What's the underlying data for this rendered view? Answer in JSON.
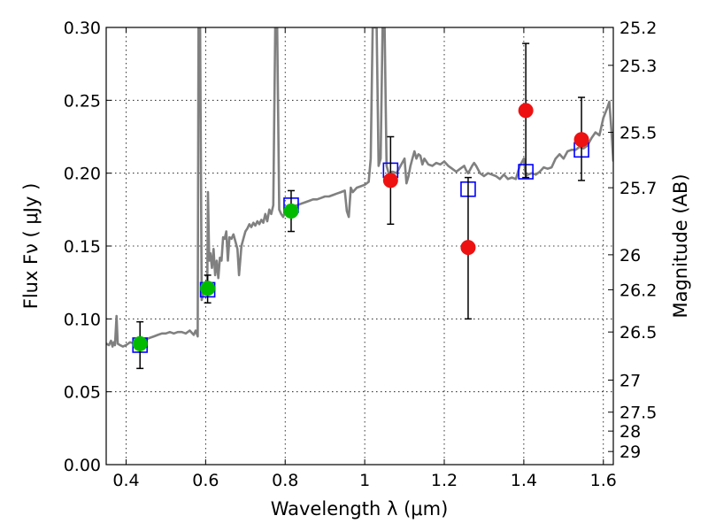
{
  "chart_data": {
    "type": "scatter",
    "xlabel": "Wavelength  λ (μm)",
    "ylabel": "Flux  Fν  ( μJy )",
    "ylabel_right": "Magnitude (AB)",
    "xlim": [
      0.35,
      1.625
    ],
    "ylim": [
      0.0,
      0.3
    ],
    "x_ticks": [
      0.4,
      0.6,
      0.8,
      1.0,
      1.2,
      1.4,
      1.6
    ],
    "x_tick_labels": [
      "0.4",
      "0.6",
      "0.8",
      "1",
      "1.2",
      "1.4",
      "1.6"
    ],
    "y_ticks": [
      0.0,
      0.05,
      0.1,
      0.15,
      0.2,
      0.25,
      0.3
    ],
    "y_tick_labels": [
      "0.00",
      "0.05",
      "0.10",
      "0.15",
      "0.20",
      "0.25",
      "0.30"
    ],
    "right_ticks": [
      {
        "label": "25.2",
        "flux": 0.3
      },
      {
        "label": "25.3",
        "flux": 0.274
      },
      {
        "label": "25.5",
        "flux": 0.228
      },
      {
        "label": "25.7",
        "flux": 0.19
      },
      {
        "label": "26",
        "flux": 0.144
      },
      {
        "label": "26.2",
        "flux": 0.12
      },
      {
        "label": "26.5",
        "flux": 0.091
      },
      {
        "label": "27",
        "flux": 0.058
      },
      {
        "label": "27.5",
        "flux": 0.036
      },
      {
        "label": "28",
        "flux": 0.023
      },
      {
        "label": "29",
        "flux": 0.009
      }
    ],
    "grid": true,
    "spectrum": {
      "color": "#808080",
      "points": [
        [
          0.35,
          0.083
        ],
        [
          0.357,
          0.082
        ],
        [
          0.362,
          0.085
        ],
        [
          0.366,
          0.081
        ],
        [
          0.369,
          0.084
        ],
        [
          0.372,
          0.082
        ],
        [
          0.376,
          0.102
        ],
        [
          0.379,
          0.083
        ],
        [
          0.385,
          0.082
        ],
        [
          0.392,
          0.081
        ],
        [
          0.4,
          0.082
        ],
        [
          0.41,
          0.084
        ],
        [
          0.42,
          0.083
        ],
        [
          0.43,
          0.084
        ],
        [
          0.44,
          0.085
        ],
        [
          0.45,
          0.086
        ],
        [
          0.46,
          0.087
        ],
        [
          0.47,
          0.088
        ],
        [
          0.48,
          0.089
        ],
        [
          0.49,
          0.09
        ],
        [
          0.5,
          0.09
        ],
        [
          0.51,
          0.091
        ],
        [
          0.52,
          0.09
        ],
        [
          0.53,
          0.091
        ],
        [
          0.54,
          0.091
        ],
        [
          0.55,
          0.09
        ],
        [
          0.56,
          0.092
        ],
        [
          0.57,
          0.089
        ],
        [
          0.575,
          0.092
        ],
        [
          0.58,
          0.088
        ],
        [
          0.582,
          0.3
        ],
        [
          0.586,
          0.3
        ],
        [
          0.59,
          0.113
        ],
        [
          0.595,
          0.118
        ],
        [
          0.6,
          0.12
        ],
        [
          0.604,
          0.121
        ],
        [
          0.606,
          0.187
        ],
        [
          0.609,
          0.14
        ],
        [
          0.612,
          0.145
        ],
        [
          0.616,
          0.135
        ],
        [
          0.62,
          0.148
        ],
        [
          0.624,
          0.13
        ],
        [
          0.628,
          0.14
        ],
        [
          0.632,
          0.128
        ],
        [
          0.636,
          0.142
        ],
        [
          0.64,
          0.14
        ],
        [
          0.644,
          0.156
        ],
        [
          0.648,
          0.155
        ],
        [
          0.652,
          0.16
        ],
        [
          0.656,
          0.14
        ],
        [
          0.66,
          0.156
        ],
        [
          0.665,
          0.155
        ],
        [
          0.67,
          0.158
        ],
        [
          0.675,
          0.153
        ],
        [
          0.68,
          0.148
        ],
        [
          0.684,
          0.13
        ],
        [
          0.69,
          0.15
        ],
        [
          0.695,
          0.155
        ],
        [
          0.7,
          0.16
        ],
        [
          0.705,
          0.162
        ],
        [
          0.71,
          0.165
        ],
        [
          0.715,
          0.163
        ],
        [
          0.72,
          0.166
        ],
        [
          0.725,
          0.164
        ],
        [
          0.73,
          0.167
        ],
        [
          0.735,
          0.165
        ],
        [
          0.74,
          0.168
        ],
        [
          0.745,
          0.166
        ],
        [
          0.75,
          0.172
        ],
        [
          0.755,
          0.167
        ],
        [
          0.76,
          0.175
        ],
        [
          0.765,
          0.172
        ],
        [
          0.77,
          0.178
        ],
        [
          0.775,
          0.3
        ],
        [
          0.78,
          0.3
        ],
        [
          0.785,
          0.175
        ],
        [
          0.79,
          0.172
        ],
        [
          0.795,
          0.17
        ],
        [
          0.8,
          0.174
        ],
        [
          0.805,
          0.175
        ],
        [
          0.81,
          0.176
        ],
        [
          0.82,
          0.177
        ],
        [
          0.83,
          0.178
        ],
        [
          0.84,
          0.179
        ],
        [
          0.85,
          0.18
        ],
        [
          0.86,
          0.181
        ],
        [
          0.87,
          0.182
        ],
        [
          0.88,
          0.182
        ],
        [
          0.89,
          0.183
        ],
        [
          0.9,
          0.184
        ],
        [
          0.91,
          0.184
        ],
        [
          0.92,
          0.185
        ],
        [
          0.93,
          0.186
        ],
        [
          0.94,
          0.187
        ],
        [
          0.95,
          0.188
        ],
        [
          0.955,
          0.174
        ],
        [
          0.96,
          0.17
        ],
        [
          0.965,
          0.19
        ],
        [
          0.97,
          0.187
        ],
        [
          0.98,
          0.19
        ],
        [
          0.99,
          0.191
        ],
        [
          1.0,
          0.192
        ],
        [
          1.01,
          0.194
        ],
        [
          1.015,
          0.21
        ],
        [
          1.02,
          0.3
        ],
        [
          1.03,
          0.3
        ],
        [
          1.035,
          0.205
        ],
        [
          1.04,
          0.21
        ],
        [
          1.045,
          0.3
        ],
        [
          1.05,
          0.3
        ],
        [
          1.055,
          0.205
        ],
        [
          1.06,
          0.2
        ],
        [
          1.07,
          0.201
        ],
        [
          1.08,
          0.2
        ],
        [
          1.09,
          0.205
        ],
        [
          1.1,
          0.21
        ],
        [
          1.105,
          0.193
        ],
        [
          1.11,
          0.198
        ],
        [
          1.115,
          0.205
        ],
        [
          1.12,
          0.21
        ],
        [
          1.125,
          0.215
        ],
        [
          1.13,
          0.21
        ],
        [
          1.135,
          0.213
        ],
        [
          1.14,
          0.212
        ],
        [
          1.145,
          0.206
        ],
        [
          1.15,
          0.21
        ],
        [
          1.16,
          0.206
        ],
        [
          1.17,
          0.205
        ],
        [
          1.18,
          0.207
        ],
        [
          1.19,
          0.206
        ],
        [
          1.2,
          0.208
        ],
        [
          1.21,
          0.205
        ],
        [
          1.22,
          0.203
        ],
        [
          1.23,
          0.201
        ],
        [
          1.24,
          0.203
        ],
        [
          1.25,
          0.205
        ],
        [
          1.255,
          0.202
        ],
        [
          1.26,
          0.2
        ],
        [
          1.27,
          0.205
        ],
        [
          1.275,
          0.207
        ],
        [
          1.28,
          0.205
        ],
        [
          1.29,
          0.2
        ],
        [
          1.3,
          0.198
        ],
        [
          1.31,
          0.2
        ],
        [
          1.32,
          0.199
        ],
        [
          1.33,
          0.198
        ],
        [
          1.34,
          0.196
        ],
        [
          1.35,
          0.199
        ],
        [
          1.36,
          0.196
        ],
        [
          1.37,
          0.197
        ],
        [
          1.38,
          0.196
        ],
        [
          1.39,
          0.205
        ],
        [
          1.4,
          0.21
        ],
        [
          1.405,
          0.198
        ],
        [
          1.41,
          0.199
        ],
        [
          1.42,
          0.2
        ],
        [
          1.43,
          0.199
        ],
        [
          1.44,
          0.201
        ],
        [
          1.45,
          0.204
        ],
        [
          1.46,
          0.203
        ],
        [
          1.47,
          0.204
        ],
        [
          1.48,
          0.21
        ],
        [
          1.49,
          0.213
        ],
        [
          1.5,
          0.21
        ],
        [
          1.51,
          0.215
        ],
        [
          1.52,
          0.216
        ],
        [
          1.53,
          0.216
        ],
        [
          1.54,
          0.218
        ],
        [
          1.55,
          0.217
        ],
        [
          1.56,
          0.219
        ],
        [
          1.57,
          0.224
        ],
        [
          1.58,
          0.228
        ],
        [
          1.59,
          0.226
        ],
        [
          1.6,
          0.238
        ],
        [
          1.61,
          0.245
        ],
        [
          1.615,
          0.249
        ],
        [
          1.62,
          0.23
        ],
        [
          1.625,
          0.208
        ]
      ]
    },
    "model_points": {
      "marker": "open-square",
      "color": "#0000ff",
      "points": [
        [
          0.435,
          0.082
        ],
        [
          0.605,
          0.12
        ],
        [
          0.815,
          0.178
        ],
        [
          1.065,
          0.202
        ],
        [
          1.26,
          0.189
        ],
        [
          1.405,
          0.201
        ],
        [
          1.545,
          0.216
        ]
      ]
    },
    "observed": [
      {
        "x": 0.435,
        "y": 0.083,
        "err_low": 0.017,
        "err_high": 0.015,
        "color": "#00bb00"
      },
      {
        "x": 0.605,
        "y": 0.121,
        "err_low": 0.01,
        "err_high": 0.009,
        "color": "#00bb00"
      },
      {
        "x": 0.815,
        "y": 0.174,
        "err_low": 0.014,
        "err_high": 0.014,
        "color": "#00bb00"
      },
      {
        "x": 1.065,
        "y": 0.195,
        "err_low": 0.03,
        "err_high": 0.03,
        "color": "#ee1111"
      },
      {
        "x": 1.26,
        "y": 0.149,
        "err_low": 0.049,
        "err_high": 0.048,
        "color": "#ee1111"
      },
      {
        "x": 1.405,
        "y": 0.243,
        "err_low": 0.046,
        "err_high": 0.046,
        "color": "#ee1111"
      },
      {
        "x": 1.545,
        "y": 0.223,
        "err_low": 0.028,
        "err_high": 0.029,
        "color": "#ee1111"
      }
    ]
  }
}
